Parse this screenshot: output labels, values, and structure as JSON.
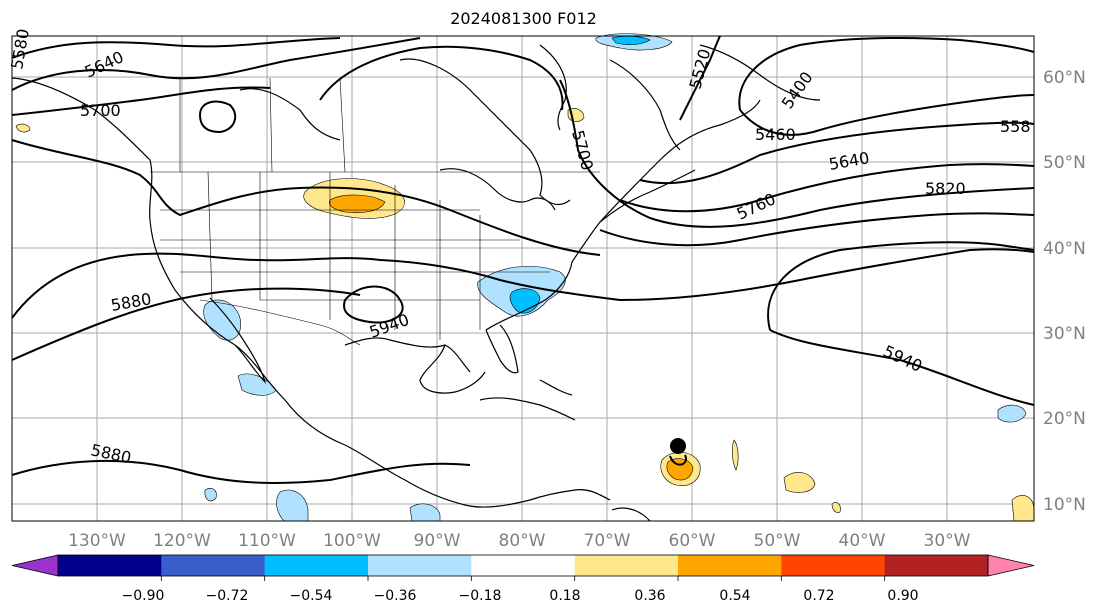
{
  "title": "2024081300 F012",
  "longitude_labels": [
    "130°W",
    "120°W",
    "110°W",
    "100°W",
    "90°W",
    "80°W",
    "70°W",
    "60°W",
    "50°W",
    "40°W",
    "30°W"
  ],
  "latitude_labels": [
    "60°N",
    "50°N",
    "40°N",
    "30°N",
    "20°N",
    "10°N"
  ],
  "contour_labels": [
    "5580",
    "5640",
    "5700",
    "5520",
    "5400",
    "5700",
    "5460",
    "558",
    "5640",
    "5820",
    "5760",
    "5880",
    "5940",
    "5940",
    "5880"
  ],
  "colorbar": {
    "ticks": [
      "−0.90",
      "−0.72",
      "−0.54",
      "−0.36",
      "−0.18",
      "0.18",
      "0.36",
      "0.54",
      "0.72",
      "0.90"
    ],
    "colors": [
      "#9a32cd",
      "#00008b",
      "#3a5fcd",
      "#00bfff",
      "#b0e2ff",
      "#ffffff",
      "#ffe78b",
      "#ffa500",
      "#ff4500",
      "#b22222",
      "#ff82ab"
    ]
  },
  "colors": {
    "grid": "#aaaaaa",
    "coast": "#000000",
    "contour": "#000000",
    "frame": "#000000"
  }
}
